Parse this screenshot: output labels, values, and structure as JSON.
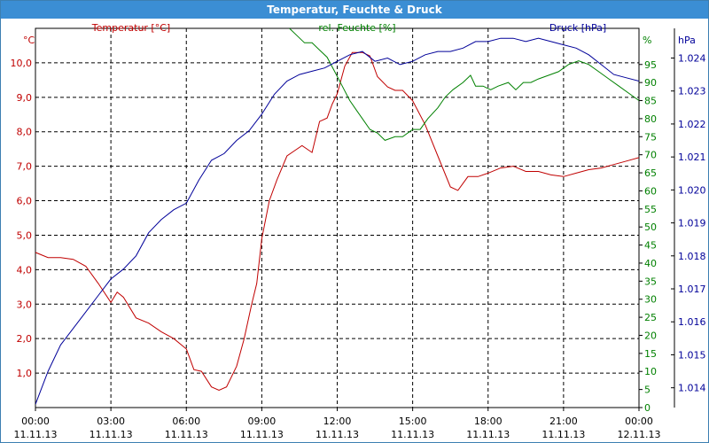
{
  "window": {
    "title": "Temperatur, Feuchte & Druck"
  },
  "colors": {
    "temperature": "#c00000",
    "humidity": "#008000",
    "pressure": "#000099",
    "title_bg": "#3b8ed4",
    "grid": "#000000"
  },
  "chart_data": {
    "type": "line",
    "title": "Temperatur, Feuchte & Druck",
    "x_ticks": [
      {
        "time": "00:00",
        "date": "11.11.13",
        "h": 0
      },
      {
        "time": "03:00",
        "date": "11.11.13",
        "h": 3
      },
      {
        "time": "06:00",
        "date": "11.11.13",
        "h": 6
      },
      {
        "time": "09:00",
        "date": "11.11.13",
        "h": 9
      },
      {
        "time": "12:00",
        "date": "11.11.13",
        "h": 12
      },
      {
        "time": "15:00",
        "date": "11.11.13",
        "h": 15
      },
      {
        "time": "18:00",
        "date": "11.11.13",
        "h": 18
      },
      {
        "time": "21:00",
        "date": "11.11.13",
        "h": 21
      },
      {
        "time": "00:00",
        "date": "12.11.13",
        "h": 24
      }
    ],
    "xlim": [
      0,
      24
    ],
    "grid": true,
    "axes": {
      "temperature": {
        "label": "Temperatur [°C]",
        "unit": "°C",
        "ylim": [
          0,
          11
        ],
        "ticks": [
          "1,0",
          "2,0",
          "3,0",
          "4,0",
          "5,0",
          "6,0",
          "7,0",
          "8,0",
          "9,0",
          "10,0"
        ],
        "tick_values": [
          1,
          2,
          3,
          4,
          5,
          6,
          7,
          8,
          9,
          10
        ]
      },
      "humidity": {
        "label": "rel. Feuchte [%]",
        "unit": "%",
        "ylim": [
          0,
          105
        ],
        "ticks": [
          "0",
          "5",
          "10",
          "15",
          "20",
          "25",
          "30",
          "35",
          "40",
          "45",
          "50",
          "55",
          "60",
          "65",
          "70",
          "75",
          "80",
          "85",
          "90",
          "95"
        ],
        "tick_values": [
          0,
          5,
          10,
          15,
          20,
          25,
          30,
          35,
          40,
          45,
          50,
          55,
          60,
          65,
          70,
          75,
          80,
          85,
          90,
          95
        ]
      },
      "pressure": {
        "label": "Druck [hPa]",
        "unit": "hPa",
        "ylim": [
          1013.4,
          1024.9
        ],
        "ticks": [
          "1.014",
          "1.015",
          "1.016",
          "1.017",
          "1.018",
          "1.019",
          "1.020",
          "1.021",
          "1.022",
          "1.023",
          "1.024"
        ],
        "tick_values": [
          1014,
          1015,
          1016,
          1017,
          1018,
          1019,
          1020,
          1021,
          1022,
          1023,
          1024
        ]
      }
    },
    "series": [
      {
        "name": "Temperatur [°C]",
        "axis": "temperature",
        "points": [
          [
            0,
            4.5
          ],
          [
            0.5,
            4.35
          ],
          [
            1,
            4.35
          ],
          [
            1.5,
            4.3
          ],
          [
            2,
            4.1
          ],
          [
            2.5,
            3.6
          ],
          [
            3,
            3.05
          ],
          [
            3.25,
            3.35
          ],
          [
            3.5,
            3.2
          ],
          [
            4,
            2.6
          ],
          [
            4.5,
            2.45
          ],
          [
            5,
            2.2
          ],
          [
            5.5,
            2.0
          ],
          [
            6,
            1.7
          ],
          [
            6.3,
            1.1
          ],
          [
            6.6,
            1.05
          ],
          [
            7,
            0.6
          ],
          [
            7.3,
            0.5
          ],
          [
            7.6,
            0.6
          ],
          [
            8,
            1.2
          ],
          [
            8.3,
            2.0
          ],
          [
            8.6,
            3.0
          ],
          [
            8.8,
            3.6
          ],
          [
            9,
            4.9
          ],
          [
            9.3,
            6.0
          ],
          [
            9.6,
            6.6
          ],
          [
            10,
            7.3
          ],
          [
            10.3,
            7.45
          ],
          [
            10.6,
            7.6
          ],
          [
            11,
            7.4
          ],
          [
            11.3,
            8.3
          ],
          [
            11.6,
            8.4
          ],
          [
            11.8,
            8.8
          ],
          [
            12,
            9.1
          ],
          [
            12.3,
            9.9
          ],
          [
            12.6,
            10.3
          ],
          [
            13,
            10.3
          ],
          [
            13.3,
            10.2
          ],
          [
            13.6,
            9.6
          ],
          [
            14,
            9.3
          ],
          [
            14.3,
            9.2
          ],
          [
            14.6,
            9.2
          ],
          [
            15,
            8.9
          ],
          [
            15.5,
            8.2
          ],
          [
            16,
            7.3
          ],
          [
            16.5,
            6.4
          ],
          [
            16.8,
            6.3
          ],
          [
            17.2,
            6.7
          ],
          [
            17.6,
            6.7
          ],
          [
            18,
            6.8
          ],
          [
            18.5,
            6.95
          ],
          [
            19,
            7.0
          ],
          [
            19.5,
            6.85
          ],
          [
            20,
            6.85
          ],
          [
            20.5,
            6.75
          ],
          [
            21,
            6.7
          ],
          [
            21.5,
            6.8
          ],
          [
            22,
            6.9
          ],
          [
            22.5,
            6.95
          ],
          [
            23,
            7.05
          ],
          [
            23.5,
            7.15
          ],
          [
            24,
            7.25
          ]
        ]
      },
      {
        "name": "rel. Feuchte [%]",
        "axis": "humidity",
        "points": [
          [
            10.1,
            105
          ],
          [
            10.4,
            103
          ],
          [
            10.7,
            101
          ],
          [
            11,
            101
          ],
          [
            11.3,
            99
          ],
          [
            11.6,
            97
          ],
          [
            11.9,
            93
          ],
          [
            12.2,
            89
          ],
          [
            12.5,
            85
          ],
          [
            12.8,
            82
          ],
          [
            13,
            80
          ],
          [
            13.3,
            77
          ],
          [
            13.6,
            76
          ],
          [
            13.9,
            74
          ],
          [
            14.3,
            75
          ],
          [
            14.6,
            75
          ],
          [
            15,
            77
          ],
          [
            15.3,
            77
          ],
          [
            15.6,
            80
          ],
          [
            16,
            83
          ],
          [
            16.3,
            86
          ],
          [
            16.6,
            88
          ],
          [
            17,
            90
          ],
          [
            17.3,
            92
          ],
          [
            17.5,
            89
          ],
          [
            17.8,
            89
          ],
          [
            18.1,
            88
          ],
          [
            18.4,
            89
          ],
          [
            18.8,
            90
          ],
          [
            19.1,
            88
          ],
          [
            19.4,
            90
          ],
          [
            19.7,
            90
          ],
          [
            20,
            91
          ],
          [
            20.4,
            92
          ],
          [
            20.8,
            93
          ],
          [
            21.2,
            95
          ],
          [
            21.6,
            96
          ],
          [
            22,
            95
          ],
          [
            22.4,
            93
          ],
          [
            22.8,
            91
          ],
          [
            23.2,
            89
          ],
          [
            23.6,
            87
          ],
          [
            24,
            85
          ]
        ]
      },
      {
        "name": "Druck [hPa]",
        "axis": "pressure",
        "points": [
          [
            0,
            1013.5
          ],
          [
            0.5,
            1014.5
          ],
          [
            1,
            1015.3
          ],
          [
            1.5,
            1015.8
          ],
          [
            2,
            1016.3
          ],
          [
            2.5,
            1016.8
          ],
          [
            3,
            1017.3
          ],
          [
            3.5,
            1017.6
          ],
          [
            4,
            1018.0
          ],
          [
            4.5,
            1018.7
          ],
          [
            5,
            1019.1
          ],
          [
            5.5,
            1019.4
          ],
          [
            6,
            1019.6
          ],
          [
            6.5,
            1020.3
          ],
          [
            7,
            1020.9
          ],
          [
            7.5,
            1021.1
          ],
          [
            8,
            1021.5
          ],
          [
            8.5,
            1021.8
          ],
          [
            9,
            1022.3
          ],
          [
            9.5,
            1022.9
          ],
          [
            10,
            1023.3
          ],
          [
            10.5,
            1023.5
          ],
          [
            11,
            1023.6
          ],
          [
            11.5,
            1023.7
          ],
          [
            12,
            1023.9
          ],
          [
            12.5,
            1024.1
          ],
          [
            13,
            1024.2
          ],
          [
            13.5,
            1023.9
          ],
          [
            14,
            1024.0
          ],
          [
            14.5,
            1023.8
          ],
          [
            15,
            1023.9
          ],
          [
            15.5,
            1024.1
          ],
          [
            16,
            1024.2
          ],
          [
            16.5,
            1024.2
          ],
          [
            17,
            1024.3
          ],
          [
            17.5,
            1024.5
          ],
          [
            18,
            1024.5
          ],
          [
            18.5,
            1024.6
          ],
          [
            19,
            1024.6
          ],
          [
            19.5,
            1024.5
          ],
          [
            20,
            1024.6
          ],
          [
            20.5,
            1024.5
          ],
          [
            21,
            1024.4
          ],
          [
            21.5,
            1024.3
          ],
          [
            22,
            1024.1
          ],
          [
            22.5,
            1023.8
          ],
          [
            23,
            1023.5
          ],
          [
            23.5,
            1023.4
          ],
          [
            24,
            1023.3
          ]
        ]
      }
    ]
  }
}
